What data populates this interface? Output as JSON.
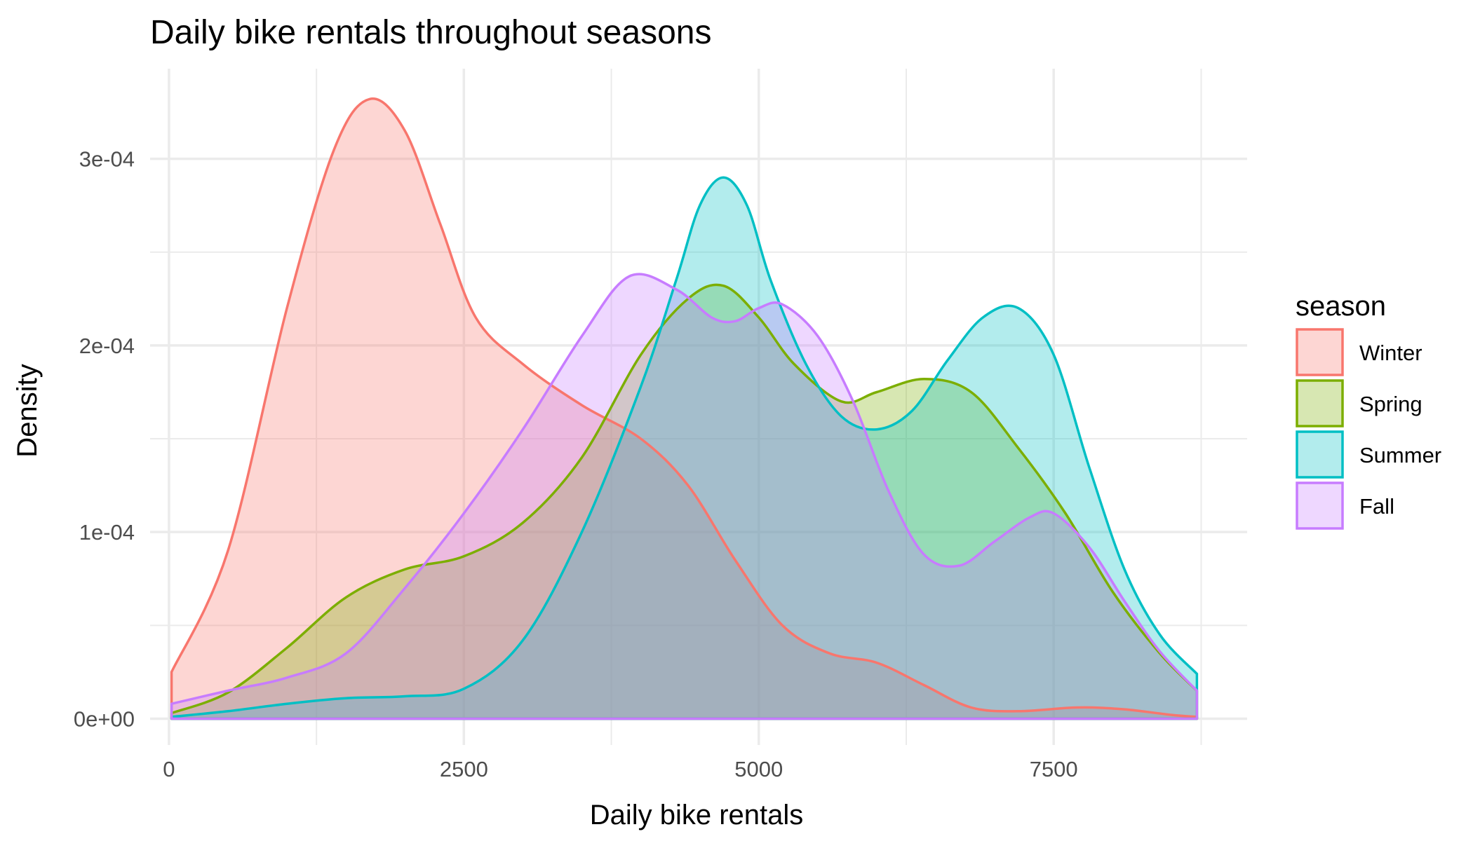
{
  "chart_data": {
    "type": "area",
    "title": "Daily bike rentals throughout seasons",
    "xlabel": "Daily bike rentals",
    "ylabel": "Density",
    "xlim": [
      -160,
      9140
    ],
    "ylim": [
      -1.41e-05,
      0.0003483
    ],
    "x_ticks": [
      {
        "value": 0,
        "label": "0"
      },
      {
        "value": 2500,
        "label": "2500"
      },
      {
        "value": 5000,
        "label": "5000"
      },
      {
        "value": 7500,
        "label": "7500"
      }
    ],
    "x_minor_ticks": [
      1250,
      3750,
      6250,
      8750
    ],
    "y_ticks": [
      {
        "value": 0,
        "label": "0e+00"
      },
      {
        "value": 0.0001,
        "label": "1e-04"
      },
      {
        "value": 0.0002,
        "label": "2e-04"
      },
      {
        "value": 0.0003,
        "label": "3e-04"
      }
    ],
    "y_minor_ticks": [
      5e-05,
      0.00015,
      0.00025
    ],
    "grid": true,
    "fill_opacity": 0.3,
    "legend": {
      "title": "season",
      "position": "right"
    },
    "series": [
      {
        "name": "Winter",
        "color": "#F8766D",
        "x": [
          22,
          500,
          1000,
          1400,
          1700,
          2000,
          2300,
          2600,
          3000,
          3500,
          4000,
          4400,
          4800,
          5200,
          5600,
          6000,
          6400,
          6800,
          7200,
          7700,
          8100,
          8500,
          8714
        ],
        "y": [
          2.5e-05,
          9e-05,
          0.00022,
          0.000305,
          0.000332,
          0.000315,
          0.000265,
          0.000215,
          0.00019,
          0.000168,
          0.00015,
          0.000125,
          8.5e-05,
          5e-05,
          3.5e-05,
          3e-05,
          1.8e-05,
          6e-06,
          4e-06,
          6e-06,
          5e-06,
          2e-06,
          1e-06
        ]
      },
      {
        "name": "Spring",
        "color": "#7CAE00",
        "x": [
          22,
          500,
          1000,
          1500,
          2000,
          2500,
          3000,
          3500,
          4000,
          4400,
          4700,
          5000,
          5300,
          5700,
          6000,
          6400,
          6800,
          7200,
          7600,
          8000,
          8400,
          8714
        ],
        "y": [
          3e-06,
          1.4e-05,
          3.8e-05,
          6.5e-05,
          8e-05,
          8.7e-05,
          0.000105,
          0.00014,
          0.000195,
          0.000225,
          0.000232,
          0.000215,
          0.00019,
          0.00017,
          0.000175,
          0.000182,
          0.000175,
          0.000145,
          0.00011,
          6.8e-05,
          3.5e-05,
          1.5e-05
        ]
      },
      {
        "name": "Summer",
        "color": "#00BFC4",
        "x": [
          22,
          500,
          1000,
          1500,
          2000,
          2500,
          3000,
          3500,
          4000,
          4300,
          4500,
          4700,
          4900,
          5100,
          5400,
          5700,
          6000,
          6300,
          6600,
          6900,
          7200,
          7500,
          7800,
          8100,
          8400,
          8714
        ],
        "y": [
          1e-06,
          4e-06,
          8e-06,
          1.1e-05,
          1.2e-05,
          1.6e-05,
          4.2e-05,
          0.0001,
          0.000178,
          0.000235,
          0.000275,
          0.00029,
          0.000275,
          0.000235,
          0.00019,
          0.000162,
          0.000155,
          0.000165,
          0.000192,
          0.000215,
          0.00022,
          0.000195,
          0.000135,
          8e-05,
          4.5e-05,
          2.4e-05
        ]
      },
      {
        "name": "Fall",
        "color": "#C77CFF",
        "x": [
          22,
          500,
          1000,
          1500,
          2000,
          2500,
          3000,
          3500,
          3900,
          4300,
          4600,
          4800,
          5000,
          5200,
          5500,
          5800,
          6100,
          6400,
          6700,
          7000,
          7300,
          7500,
          7800,
          8100,
          8400,
          8714
        ],
        "y": [
          8e-06,
          1.5e-05,
          2.2e-05,
          3.5e-05,
          7e-05,
          0.00011,
          0.000155,
          0.000205,
          0.000237,
          0.00023,
          0.000215,
          0.000213,
          0.00022,
          0.000222,
          0.000205,
          0.00017,
          0.000122,
          8.8e-05,
          8.2e-05,
          9.5e-05,
          0.000108,
          0.00011,
          9.2e-05,
          6.3e-05,
          3.6e-05,
          1.5e-05
        ]
      }
    ]
  }
}
